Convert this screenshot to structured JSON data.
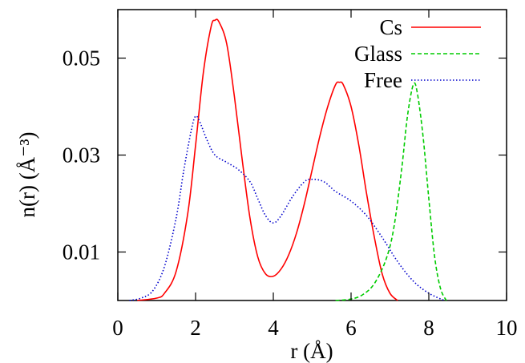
{
  "chart_data": {
    "type": "line",
    "xlabel": "r (Å)",
    "ylabel": "n(r) (Å⁻³)",
    "xlim": [
      0,
      10
    ],
    "ylim": [
      0,
      0.06
    ],
    "xticks": [
      "0",
      "2",
      "4",
      "6",
      "8",
      "10"
    ],
    "yticks": [
      "0.01",
      "0.03",
      "0.05"
    ],
    "grid": false,
    "legend_position": "top-right",
    "series": [
      {
        "name": "Cs",
        "color": "#ff0000",
        "style": "solid",
        "points": [
          [
            0.5,
            0
          ],
          [
            1.0,
            0.0005
          ],
          [
            1.2,
            0.0015
          ],
          [
            1.5,
            0.006
          ],
          [
            1.8,
            0.018
          ],
          [
            2.0,
            0.032
          ],
          [
            2.2,
            0.047
          ],
          [
            2.4,
            0.0565
          ],
          [
            2.5,
            0.0578
          ],
          [
            2.6,
            0.0575
          ],
          [
            2.8,
            0.053
          ],
          [
            3.0,
            0.042
          ],
          [
            3.2,
            0.029
          ],
          [
            3.4,
            0.017
          ],
          [
            3.6,
            0.009
          ],
          [
            3.8,
            0.0055
          ],
          [
            4.0,
            0.005
          ],
          [
            4.2,
            0.0065
          ],
          [
            4.4,
            0.0095
          ],
          [
            4.6,
            0.014
          ],
          [
            4.8,
            0.02
          ],
          [
            5.0,
            0.027
          ],
          [
            5.2,
            0.034
          ],
          [
            5.4,
            0.04
          ],
          [
            5.6,
            0.0445
          ],
          [
            5.7,
            0.045
          ],
          [
            5.8,
            0.0445
          ],
          [
            6.0,
            0.04
          ],
          [
            6.2,
            0.032
          ],
          [
            6.4,
            0.022
          ],
          [
            6.6,
            0.013
          ],
          [
            6.8,
            0.0055
          ],
          [
            7.0,
            0.0015
          ],
          [
            7.2,
            0
          ]
        ]
      },
      {
        "name": "Glass",
        "color": "#00cc00",
        "style": "dashed",
        "points": [
          [
            5.6,
            0
          ],
          [
            6.0,
            0.0003
          ],
          [
            6.3,
            0.0012
          ],
          [
            6.6,
            0.0035
          ],
          [
            6.9,
            0.0085
          ],
          [
            7.1,
            0.015
          ],
          [
            7.3,
            0.027
          ],
          [
            7.45,
            0.038
          ],
          [
            7.6,
            0.0445
          ],
          [
            7.7,
            0.043
          ],
          [
            7.85,
            0.034
          ],
          [
            8.0,
            0.021
          ],
          [
            8.15,
            0.009
          ],
          [
            8.3,
            0.0025
          ],
          [
            8.45,
            0
          ]
        ]
      },
      {
        "name": "Free",
        "color": "#0000cc",
        "style": "dotted",
        "points": [
          [
            0.3,
            0
          ],
          [
            0.6,
            0.0005
          ],
          [
            0.9,
            0.002
          ],
          [
            1.2,
            0.007
          ],
          [
            1.5,
            0.017
          ],
          [
            1.7,
            0.027
          ],
          [
            1.9,
            0.0355
          ],
          [
            2.0,
            0.038
          ],
          [
            2.1,
            0.037
          ],
          [
            2.3,
            0.033
          ],
          [
            2.5,
            0.03
          ],
          [
            2.8,
            0.0285
          ],
          [
            3.1,
            0.027
          ],
          [
            3.4,
            0.0245
          ],
          [
            3.6,
            0.021
          ],
          [
            3.8,
            0.0175
          ],
          [
            4.0,
            0.016
          ],
          [
            4.2,
            0.0175
          ],
          [
            4.5,
            0.0215
          ],
          [
            4.8,
            0.0245
          ],
          [
            5.0,
            0.025
          ],
          [
            5.3,
            0.0245
          ],
          [
            5.6,
            0.0225
          ],
          [
            6.0,
            0.0205
          ],
          [
            6.4,
            0.0175
          ],
          [
            6.8,
            0.013
          ],
          [
            7.2,
            0.008
          ],
          [
            7.6,
            0.004
          ],
          [
            8.0,
            0.0015
          ],
          [
            8.4,
            0
          ]
        ]
      }
    ]
  }
}
